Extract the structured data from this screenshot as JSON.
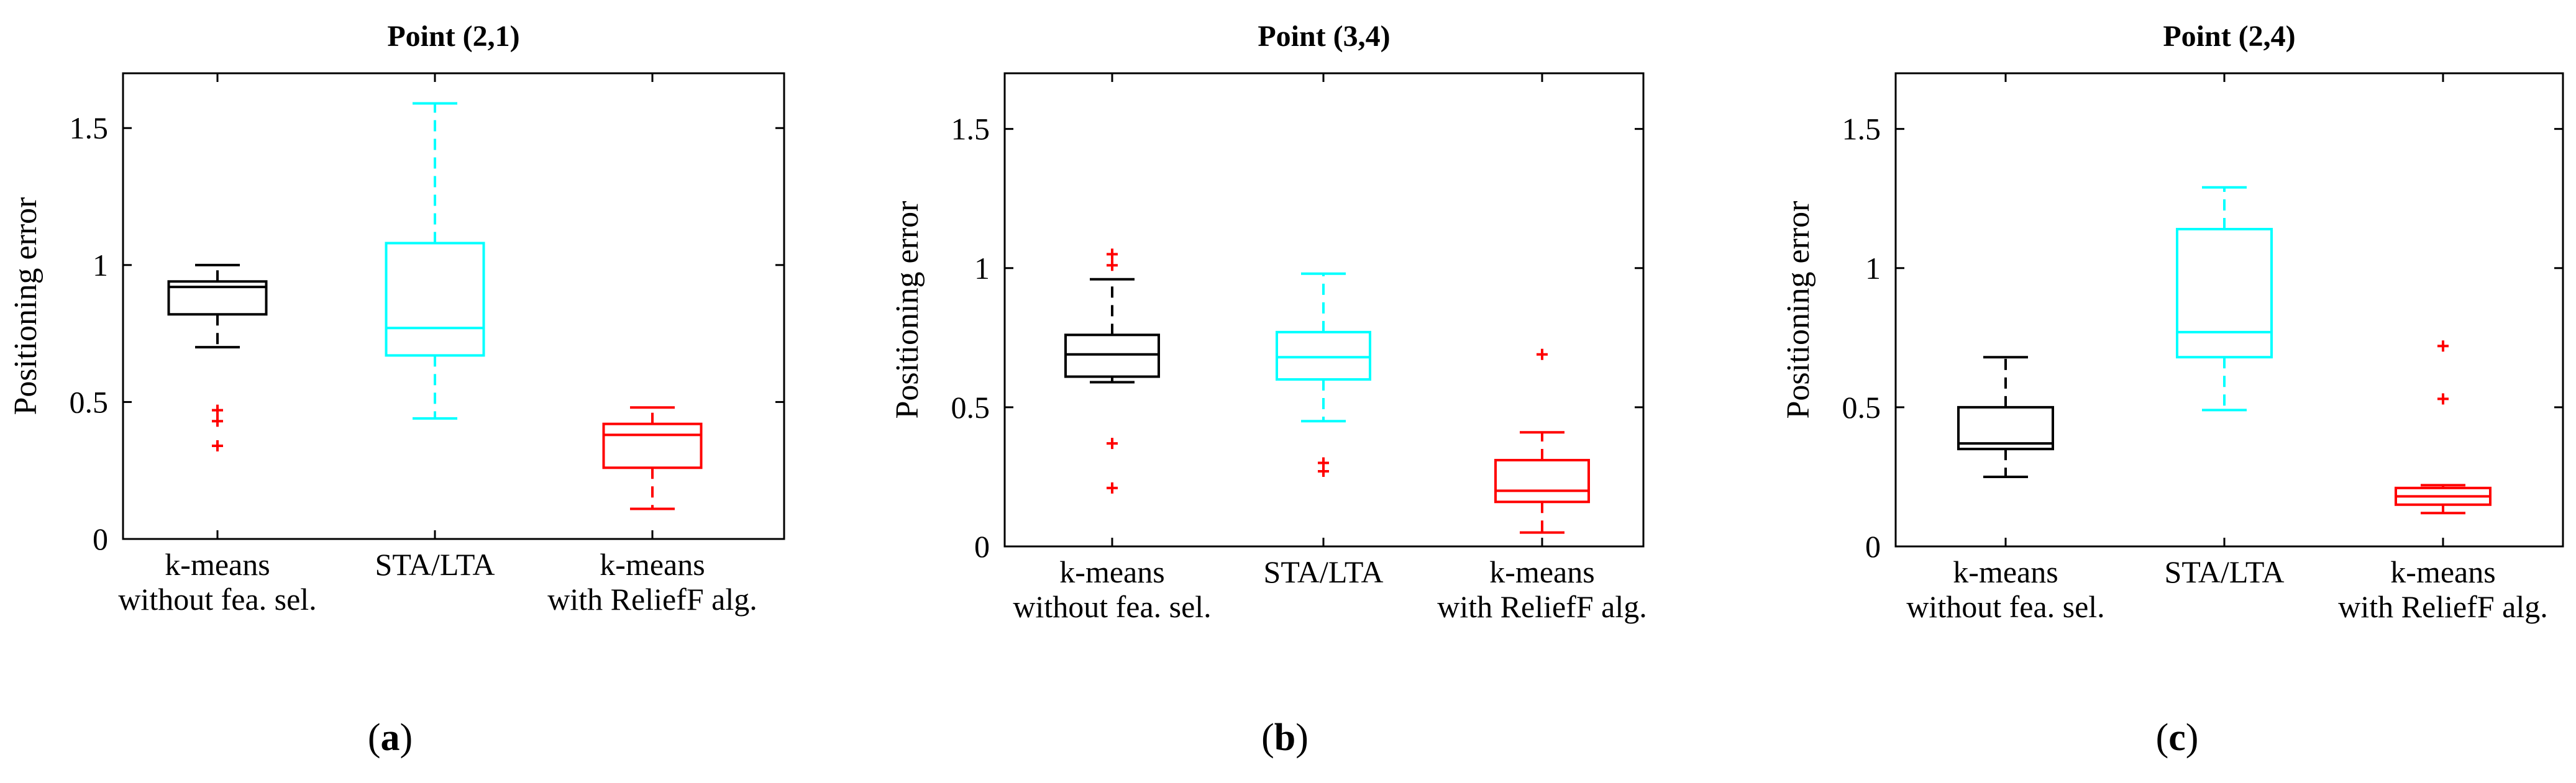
{
  "figure": {
    "panels": [
      "(a)",
      "(b)",
      "(c)"
    ]
  },
  "chart_data": [
    {
      "type": "boxplot",
      "title": "Point (2,1)",
      "xlabel": "",
      "ylabel": "Positioning error",
      "ylim": [
        0,
        1.7
      ],
      "yticks": [
        0,
        0.5,
        1,
        1.5
      ],
      "ytick_labels": [
        "0",
        "0.5",
        "1",
        "1.5"
      ],
      "grid": false,
      "categories": [
        [
          "k-means",
          "without fea. sel."
        ],
        [
          "STA/LTA"
        ],
        [
          "k-means",
          "with ReliefF alg."
        ]
      ],
      "boxes": [
        {
          "name": "k-means without fea. sel.",
          "color": "#000000",
          "whisker_low": 0.7,
          "q1": 0.82,
          "median": 0.92,
          "q3": 0.94,
          "whisker_high": 1.0,
          "outliers": [
            0.47,
            0.43,
            0.34
          ]
        },
        {
          "name": "STA/LTA",
          "color": "#00ffff",
          "whisker_low": 0.44,
          "q1": 0.67,
          "median": 0.77,
          "q3": 1.08,
          "whisker_high": 1.59,
          "outliers": []
        },
        {
          "name": "k-means with ReliefF alg.",
          "color": "#ff0000",
          "whisker_low": 0.11,
          "q1": 0.26,
          "median": 0.38,
          "q3": 0.42,
          "whisker_high": 0.48,
          "outliers": []
        }
      ]
    },
    {
      "type": "boxplot",
      "title": "Point (3,4)",
      "xlabel": "",
      "ylabel": "Positioning error",
      "ylim": [
        0,
        1.7
      ],
      "yticks": [
        0,
        0.5,
        1,
        1.5
      ],
      "ytick_labels": [
        "0",
        "0.5",
        "1",
        "1.5"
      ],
      "grid": false,
      "categories": [
        [
          "k-means",
          "without fea. sel."
        ],
        [
          "STA/LTA"
        ],
        [
          "k-means",
          "with ReliefF alg."
        ]
      ],
      "boxes": [
        {
          "name": "k-means without fea. sel.",
          "color": "#000000",
          "whisker_low": 0.59,
          "q1": 0.61,
          "median": 0.69,
          "q3": 0.76,
          "whisker_high": 0.96,
          "outliers": [
            1.05,
            1.01,
            0.37,
            0.21
          ]
        },
        {
          "name": "STA/LTA",
          "color": "#00ffff",
          "whisker_low": 0.45,
          "q1": 0.6,
          "median": 0.68,
          "q3": 0.77,
          "whisker_high": 0.98,
          "outliers": [
            0.3,
            0.27
          ]
        },
        {
          "name": "k-means with ReliefF alg.",
          "color": "#ff0000",
          "whisker_low": 0.05,
          "q1": 0.16,
          "median": 0.2,
          "q3": 0.31,
          "whisker_high": 0.41,
          "outliers": [
            0.69
          ]
        }
      ]
    },
    {
      "type": "boxplot",
      "title": "Point (2,4)",
      "xlabel": "",
      "ylabel": "Positioning error",
      "ylim": [
        0,
        1.7
      ],
      "yticks": [
        0,
        0.5,
        1,
        1.5
      ],
      "ytick_labels": [
        "0",
        "0.5",
        "1",
        "1.5"
      ],
      "grid": false,
      "categories": [
        [
          "k-means",
          "without fea. sel."
        ],
        [
          "STA/LTA"
        ],
        [
          "k-means",
          "with ReliefF alg."
        ]
      ],
      "boxes": [
        {
          "name": "k-means without fea. sel.",
          "color": "#000000",
          "whisker_low": 0.25,
          "q1": 0.35,
          "median": 0.37,
          "q3": 0.5,
          "whisker_high": 0.68,
          "outliers": []
        },
        {
          "name": "STA/LTA",
          "color": "#00ffff",
          "whisker_low": 0.49,
          "q1": 0.68,
          "median": 0.77,
          "q3": 1.14,
          "whisker_high": 1.29,
          "outliers": []
        },
        {
          "name": "k-means with ReliefF alg.",
          "color": "#ff0000",
          "whisker_low": 0.12,
          "q1": 0.15,
          "median": 0.18,
          "q3": 0.21,
          "whisker_high": 0.22,
          "outliers": [
            0.72,
            0.53
          ]
        }
      ]
    }
  ]
}
